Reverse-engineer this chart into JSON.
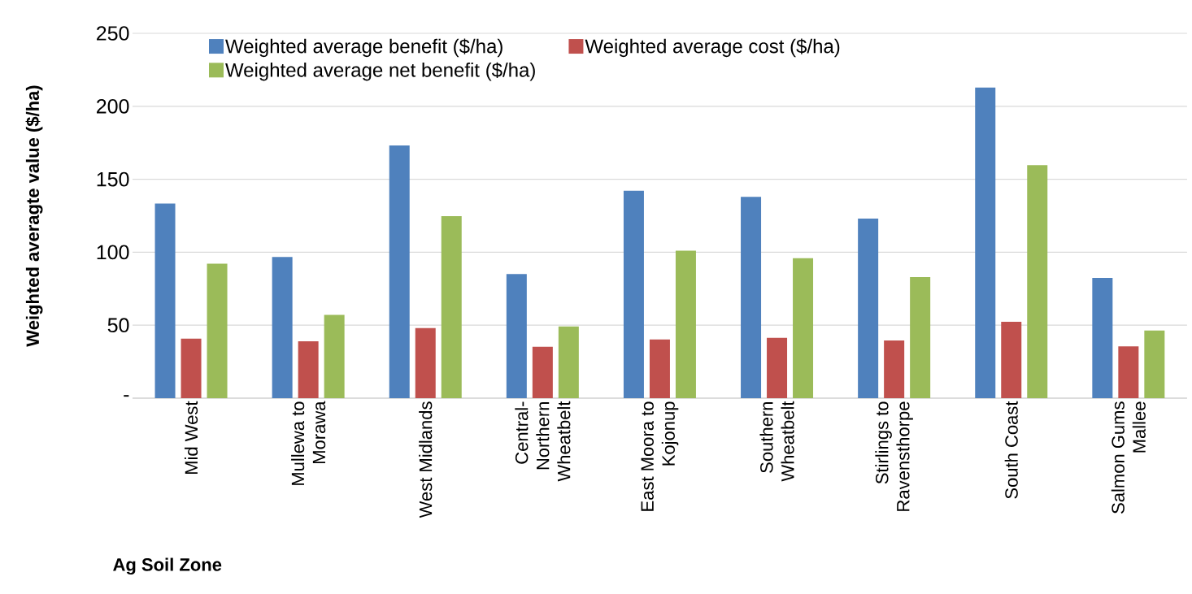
{
  "chart_data": {
    "type": "bar",
    "xlabel": "Ag Soil Zone",
    "ylabel": "Weighted averagte value ($/ha)",
    "categories": [
      "Mid West",
      "Mullewa to Morawa",
      "West Midlands",
      "Central-Northern Wheatbelt",
      "East Moora to Kojonup",
      "Southern Wheatbelt",
      "Stirlings to Ravensthorpe",
      "South Coast",
      "Salmon Gums Mallee"
    ],
    "series": [
      {
        "name": "Weighted average benefit ($/ha)",
        "color": "#4f81bd",
        "values": [
          133.4,
          96.7,
          173.2,
          85,
          142.1,
          138,
          123,
          212.8,
          82.4
        ]
      },
      {
        "name": "Weighted average cost ($/ha)",
        "color": "#c0504d",
        "values": [
          40.8,
          39,
          48,
          35.2,
          40.3,
          41.3,
          39.5,
          52.3,
          35.5
        ]
      },
      {
        "name": "Weighted average net benefit ($/ha)",
        "color": "#9bbb59",
        "values": [
          92.1,
          57.1,
          124.7,
          49.2,
          101,
          95.9,
          82.9,
          159.7,
          46.4
        ]
      }
    ],
    "ylim": [
      0,
      250
    ],
    "yticks": [
      {
        "value": 0,
        "label": "-"
      },
      50,
      100,
      150,
      200,
      250
    ],
    "grid": "y",
    "legend": "top"
  }
}
